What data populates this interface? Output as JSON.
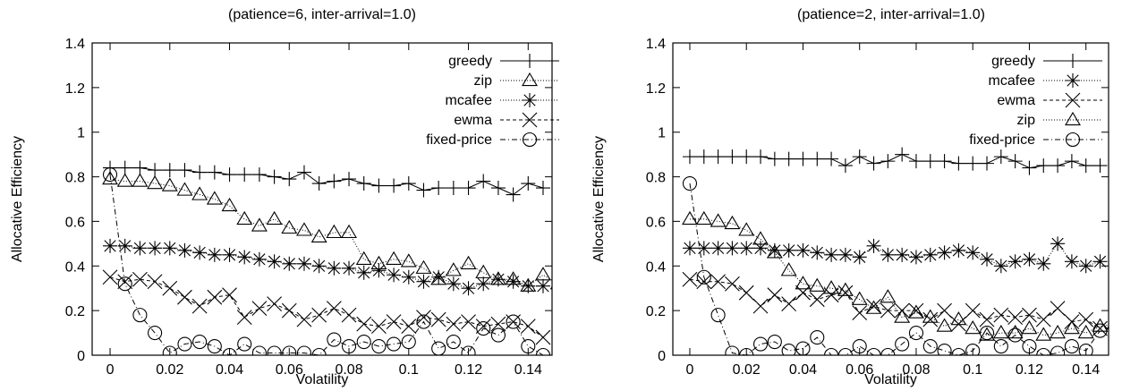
{
  "chart_data": [
    {
      "type": "line",
      "title": "(patience=6, inter-arrival=1.0)",
      "xlabel": "Volatility",
      "ylabel": "Allocative Efficiency",
      "xlim": [
        -0.006,
        0.148
      ],
      "ylim": [
        0,
        1.4
      ],
      "xticks": [
        "0",
        "0.02",
        "0.04",
        "0.06",
        "0.08",
        "0.1",
        "0.12",
        "0.14"
      ],
      "yticks": [
        "0",
        "0.2",
        "0.4",
        "0.6",
        "0.8",
        "1",
        "1.2",
        "1.4"
      ],
      "grid": false,
      "legend_position": "top-right",
      "series": [
        {
          "name": "greedy",
          "marker": "plus",
          "dash": "none",
          "x": [
            0,
            0.005,
            0.01,
            0.015,
            0.02,
            0.025,
            0.03,
            0.035,
            0.04,
            0.045,
            0.05,
            0.055,
            0.06,
            0.065,
            0.07,
            0.075,
            0.08,
            0.085,
            0.09,
            0.095,
            0.1,
            0.105,
            0.11,
            0.115,
            0.12,
            0.125,
            0.13,
            0.135,
            0.14,
            0.145
          ],
          "y": [
            0.84,
            0.84,
            0.84,
            0.83,
            0.83,
            0.83,
            0.82,
            0.82,
            0.81,
            0.81,
            0.81,
            0.8,
            0.79,
            0.82,
            0.77,
            0.78,
            0.79,
            0.77,
            0.76,
            0.76,
            0.77,
            0.74,
            0.75,
            0.75,
            0.75,
            0.78,
            0.75,
            0.72,
            0.77,
            0.75
          ]
        },
        {
          "name": "zip",
          "marker": "triangle",
          "dash": "1,2",
          "x": [
            0,
            0.005,
            0.01,
            0.015,
            0.02,
            0.025,
            0.03,
            0.035,
            0.04,
            0.045,
            0.05,
            0.055,
            0.06,
            0.065,
            0.07,
            0.075,
            0.08,
            0.085,
            0.09,
            0.095,
            0.1,
            0.105,
            0.11,
            0.115,
            0.12,
            0.125,
            0.13,
            0.135,
            0.14,
            0.145,
            0.15
          ],
          "y": [
            0.79,
            0.78,
            0.78,
            0.77,
            0.76,
            0.74,
            0.72,
            0.7,
            0.67,
            0.61,
            0.58,
            0.61,
            0.57,
            0.56,
            0.53,
            0.55,
            0.55,
            0.43,
            0.41,
            0.43,
            0.42,
            0.39,
            0.34,
            0.38,
            0.41,
            0.37,
            0.34,
            0.34,
            0.31,
            0.36,
            0.32
          ]
        },
        {
          "name": "mcafee",
          "marker": "asterisk",
          "dash": "1,2",
          "x": [
            0,
            0.005,
            0.01,
            0.015,
            0.02,
            0.025,
            0.03,
            0.035,
            0.04,
            0.045,
            0.05,
            0.055,
            0.06,
            0.065,
            0.07,
            0.075,
            0.08,
            0.085,
            0.09,
            0.095,
            0.1,
            0.105,
            0.11,
            0.115,
            0.12,
            0.125,
            0.13,
            0.135,
            0.14,
            0.145
          ],
          "y": [
            0.49,
            0.49,
            0.48,
            0.48,
            0.48,
            0.47,
            0.46,
            0.45,
            0.45,
            0.44,
            0.43,
            0.42,
            0.41,
            0.41,
            0.4,
            0.39,
            0.39,
            0.37,
            0.38,
            0.36,
            0.35,
            0.33,
            0.35,
            0.32,
            0.3,
            0.32,
            0.34,
            0.33,
            0.31,
            0.31
          ]
        },
        {
          "name": "ewma",
          "marker": "cross",
          "dash": "4,3",
          "x": [
            0,
            0.005,
            0.01,
            0.015,
            0.02,
            0.025,
            0.03,
            0.035,
            0.04,
            0.045,
            0.05,
            0.055,
            0.06,
            0.065,
            0.07,
            0.075,
            0.08,
            0.085,
            0.09,
            0.095,
            0.1,
            0.105,
            0.11,
            0.115,
            0.12,
            0.125,
            0.13,
            0.135,
            0.14,
            0.145
          ],
          "y": [
            0.35,
            0.33,
            0.34,
            0.33,
            0.3,
            0.26,
            0.22,
            0.26,
            0.27,
            0.17,
            0.21,
            0.23,
            0.2,
            0.16,
            0.18,
            0.21,
            0.18,
            0.14,
            0.13,
            0.15,
            0.13,
            0.17,
            0.16,
            0.14,
            0.15,
            0.13,
            0.14,
            0.15,
            0.13,
            0.08
          ]
        },
        {
          "name": "fixed-price",
          "marker": "circle",
          "dash": "6,3,1,3",
          "x": [
            0,
            0.005,
            0.01,
            0.015,
            0.02,
            0.025,
            0.03,
            0.035,
            0.04,
            0.045,
            0.05,
            0.055,
            0.06,
            0.065,
            0.07,
            0.075,
            0.08,
            0.085,
            0.09,
            0.095,
            0.1,
            0.105,
            0.11,
            0.115,
            0.12,
            0.125,
            0.13,
            0.135,
            0.14,
            0.145
          ],
          "y": [
            0.81,
            0.32,
            0.18,
            0.1,
            0.01,
            0.05,
            0.06,
            0.04,
            0.0,
            0.05,
            0.01,
            0.01,
            0.01,
            0.01,
            0.0,
            0.07,
            0.04,
            0.06,
            0.04,
            0.05,
            0.06,
            0.15,
            0.03,
            0.06,
            0.01,
            0.12,
            0.09,
            0.15,
            0.04,
            0.0
          ]
        }
      ]
    },
    {
      "type": "line",
      "title": "(patience=2, inter-arrival=1.0)",
      "xlabel": "Volatility",
      "ylabel": "Allocative Efficiency",
      "xlim": [
        -0.006,
        0.148
      ],
      "ylim": [
        0,
        1.4
      ],
      "xticks": [
        "0",
        "0.02",
        "0.04",
        "0.06",
        "0.08",
        "0.1",
        "0.12",
        "0.14"
      ],
      "yticks": [
        "0",
        "0.2",
        "0.4",
        "0.6",
        "0.8",
        "1",
        "1.2",
        "1.4"
      ],
      "grid": false,
      "legend_position": "top-right",
      "series": [
        {
          "name": "greedy",
          "marker": "plus",
          "dash": "none",
          "x": [
            0,
            0.005,
            0.01,
            0.015,
            0.02,
            0.025,
            0.03,
            0.035,
            0.04,
            0.045,
            0.05,
            0.055,
            0.06,
            0.065,
            0.07,
            0.075,
            0.08,
            0.085,
            0.09,
            0.095,
            0.1,
            0.105,
            0.11,
            0.115,
            0.12,
            0.125,
            0.13,
            0.135,
            0.14,
            0.145
          ],
          "y": [
            0.89,
            0.89,
            0.89,
            0.89,
            0.89,
            0.89,
            0.88,
            0.88,
            0.88,
            0.88,
            0.88,
            0.85,
            0.89,
            0.86,
            0.87,
            0.9,
            0.87,
            0.87,
            0.87,
            0.86,
            0.86,
            0.86,
            0.89,
            0.87,
            0.84,
            0.85,
            0.85,
            0.87,
            0.85,
            0.85
          ]
        },
        {
          "name": "mcafee",
          "marker": "asterisk",
          "dash": "1,2",
          "x": [
            0,
            0.005,
            0.01,
            0.015,
            0.02,
            0.025,
            0.03,
            0.035,
            0.04,
            0.045,
            0.05,
            0.055,
            0.06,
            0.065,
            0.07,
            0.075,
            0.08,
            0.085,
            0.09,
            0.095,
            0.1,
            0.105,
            0.11,
            0.115,
            0.12,
            0.125,
            0.13,
            0.135,
            0.14,
            0.145
          ],
          "y": [
            0.48,
            0.48,
            0.48,
            0.48,
            0.48,
            0.48,
            0.47,
            0.47,
            0.47,
            0.46,
            0.45,
            0.45,
            0.44,
            0.49,
            0.45,
            0.45,
            0.44,
            0.45,
            0.46,
            0.47,
            0.46,
            0.43,
            0.4,
            0.42,
            0.43,
            0.41,
            0.5,
            0.42,
            0.4,
            0.42
          ]
        },
        {
          "name": "ewma",
          "marker": "cross",
          "dash": "4,3",
          "x": [
            0,
            0.005,
            0.01,
            0.015,
            0.02,
            0.025,
            0.03,
            0.035,
            0.04,
            0.045,
            0.05,
            0.055,
            0.06,
            0.065,
            0.07,
            0.075,
            0.08,
            0.085,
            0.09,
            0.095,
            0.1,
            0.105,
            0.11,
            0.115,
            0.12,
            0.125,
            0.13,
            0.135,
            0.14,
            0.145
          ],
          "y": [
            0.34,
            0.33,
            0.33,
            0.32,
            0.28,
            0.22,
            0.27,
            0.23,
            0.28,
            0.25,
            0.27,
            0.28,
            0.19,
            0.22,
            0.2,
            0.2,
            0.2,
            0.16,
            0.2,
            0.14,
            0.2,
            0.16,
            0.18,
            0.17,
            0.18,
            0.16,
            0.21,
            0.15,
            0.16,
            0.12
          ]
        },
        {
          "name": "zip",
          "marker": "triangle",
          "dash": "1,2",
          "x": [
            0,
            0.005,
            0.01,
            0.015,
            0.02,
            0.025,
            0.03,
            0.035,
            0.04,
            0.045,
            0.05,
            0.055,
            0.06,
            0.065,
            0.07,
            0.075,
            0.08,
            0.085,
            0.09,
            0.095,
            0.1,
            0.105,
            0.11,
            0.115,
            0.12,
            0.125,
            0.13,
            0.135,
            0.14,
            0.145,
            0.15
          ],
          "y": [
            0.61,
            0.61,
            0.6,
            0.59,
            0.56,
            0.52,
            0.46,
            0.38,
            0.32,
            0.31,
            0.3,
            0.29,
            0.25,
            0.21,
            0.26,
            0.17,
            0.19,
            0.17,
            0.13,
            0.16,
            0.12,
            0.09,
            0.1,
            0.1,
            0.12,
            0.09,
            0.1,
            0.12,
            0.1,
            0.13,
            0.14
          ]
        },
        {
          "name": "fixed-price",
          "marker": "circle",
          "dash": "6,3,1,3",
          "x": [
            0,
            0.005,
            0.01,
            0.015,
            0.02,
            0.025,
            0.03,
            0.035,
            0.04,
            0.045,
            0.05,
            0.055,
            0.06,
            0.065,
            0.07,
            0.075,
            0.08,
            0.085,
            0.09,
            0.095,
            0.1,
            0.105,
            0.11,
            0.115,
            0.12,
            0.125,
            0.13,
            0.135,
            0.14,
            0.145
          ],
          "y": [
            0.77,
            0.35,
            0.18,
            0.01,
            0.0,
            0.05,
            0.06,
            0.02,
            0.03,
            0.08,
            0.0,
            0.0,
            0.04,
            0.0,
            0.0,
            0.05,
            0.1,
            0.04,
            0.02,
            0.0,
            0.02,
            0.1,
            0.04,
            0.09,
            0.04,
            0.0,
            0.01,
            0.04,
            0.02,
            0.11
          ]
        }
      ]
    }
  ]
}
